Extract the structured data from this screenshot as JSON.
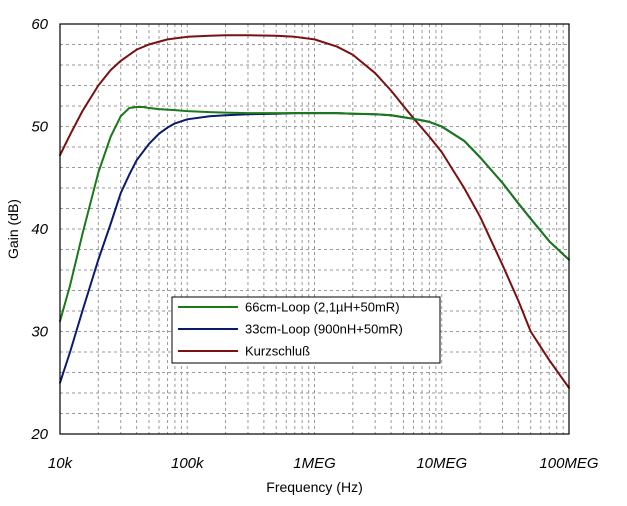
{
  "chart_data": {
    "type": "line",
    "title": "",
    "xlabel": "Frequency (Hz)",
    "ylabel": "Gain (dB)",
    "x_scale": "log",
    "xlim": [
      10000,
      100000000
    ],
    "ylim": [
      20,
      60
    ],
    "x_ticks": [
      {
        "value": 10000,
        "label": "10k"
      },
      {
        "value": 100000,
        "label": "100k"
      },
      {
        "value": 1000000,
        "label": "1MEG"
      },
      {
        "value": 10000000,
        "label": "10MEG"
      },
      {
        "value": 100000000,
        "label": "100MEG"
      }
    ],
    "y_ticks": [
      {
        "value": 20,
        "label": "20"
      },
      {
        "value": 30,
        "label": "30"
      },
      {
        "value": 40,
        "label": "40"
      },
      {
        "value": 50,
        "label": "50"
      },
      {
        "value": 60,
        "label": "60"
      }
    ],
    "grid": true,
    "legend_position": "lower-center",
    "series": [
      {
        "name": "66cm-Loop (2,1µH+50mR)",
        "color": "#1a7a1a",
        "x": [
          10000,
          12000,
          15000,
          20000,
          25000,
          30000,
          35000,
          40000,
          45000,
          50000,
          60000,
          80000,
          100000,
          150000,
          200000,
          300000,
          500000,
          700000,
          1000000,
          1500000,
          2000000,
          3000000,
          4000000,
          5000000,
          6000000,
          7000000,
          8000000,
          10000000,
          15000000,
          20000000,
          30000000,
          40000000,
          50000000,
          70000000,
          100000000
        ],
        "y": [
          31.0,
          34.5,
          39.5,
          45.5,
          49.0,
          51.0,
          51.8,
          51.9,
          51.9,
          51.8,
          51.7,
          51.6,
          51.5,
          51.4,
          51.35,
          51.3,
          51.3,
          51.3,
          51.3,
          51.3,
          51.25,
          51.2,
          51.1,
          50.9,
          50.75,
          50.6,
          50.45,
          50.0,
          48.6,
          47.0,
          44.5,
          42.5,
          41.0,
          38.8,
          37.0
        ]
      },
      {
        "name": "33cm-Loop (900nH+50mR)",
        "color": "#0a1a6e",
        "x": [
          10000,
          12000,
          15000,
          20000,
          25000,
          30000,
          35000,
          40000,
          50000,
          60000,
          70000,
          80000,
          100000,
          150000,
          200000,
          300000,
          500000,
          700000,
          1000000,
          1500000,
          2000000,
          3000000,
          4000000,
          5000000,
          6000000,
          7000000,
          8000000,
          10000000,
          15000000,
          20000000,
          30000000,
          40000000,
          50000000,
          70000000,
          100000000
        ],
        "y": [
          25.0,
          28.0,
          32.0,
          37.0,
          40.5,
          43.5,
          45.3,
          46.7,
          48.3,
          49.3,
          49.9,
          50.3,
          50.7,
          51.0,
          51.1,
          51.2,
          51.25,
          51.3,
          51.3,
          51.3,
          51.25,
          51.2,
          51.1,
          50.9,
          50.75,
          50.6,
          50.45,
          50.0,
          48.6,
          47.0,
          44.5,
          42.5,
          41.0,
          38.8,
          37.0
        ]
      },
      {
        "name": "Kurzschluß",
        "color": "#7a1010",
        "x": [
          10000,
          12000,
          15000,
          20000,
          25000,
          30000,
          40000,
          50000,
          70000,
          100000,
          150000,
          200000,
          300000,
          500000,
          700000,
          1000000,
          1500000,
          2000000,
          3000000,
          4000000,
          5000000,
          6000000,
          8000000,
          10000000,
          15000000,
          20000000,
          30000000,
          40000000,
          50000000,
          70000000,
          100000000
        ],
        "y": [
          47.2,
          49.2,
          51.5,
          54.0,
          55.5,
          56.4,
          57.5,
          58.0,
          58.5,
          58.75,
          58.85,
          58.9,
          58.9,
          58.85,
          58.75,
          58.5,
          57.8,
          57.0,
          55.2,
          53.5,
          52.0,
          50.8,
          49.0,
          47.5,
          44.0,
          41.2,
          36.5,
          33.0,
          30.0,
          27.2,
          24.5
        ]
      }
    ]
  }
}
